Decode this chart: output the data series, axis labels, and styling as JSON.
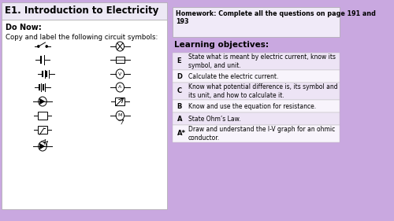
{
  "title": "E1. Introduction to Electricity",
  "bg_color": "#c9a8e0",
  "left_panel_bg": "#ffffff",
  "hw_box_bg": "#f0eaf8",
  "table_row_bg_odd": "#ede4f5",
  "table_row_bg_even": "#f8f4fc",
  "homework_text": "Homework: Complete all the questions on page 191 and\n193",
  "do_now_text": "Do Now:",
  "copy_text": "Copy and label the following circuit symbols:",
  "learning_obj_title": "Learning objectives:",
  "objectives": [
    [
      "E",
      "State what is meant by electric current, know its\nsymbol, and unit."
    ],
    [
      "D",
      "Calculate the electric current."
    ],
    [
      "C",
      "Know what potential difference is, its symbol and\nits unit, and how to calculate it."
    ],
    [
      "B",
      "Know and use the equation for resistance."
    ],
    [
      "A",
      "State Ohm’s Law."
    ],
    [
      "A*",
      "Draw and understand the I-V graph for an ohmic\nconductor."
    ]
  ],
  "title_bg": "#ede8f5",
  "panel_border": "#aaaaaa"
}
